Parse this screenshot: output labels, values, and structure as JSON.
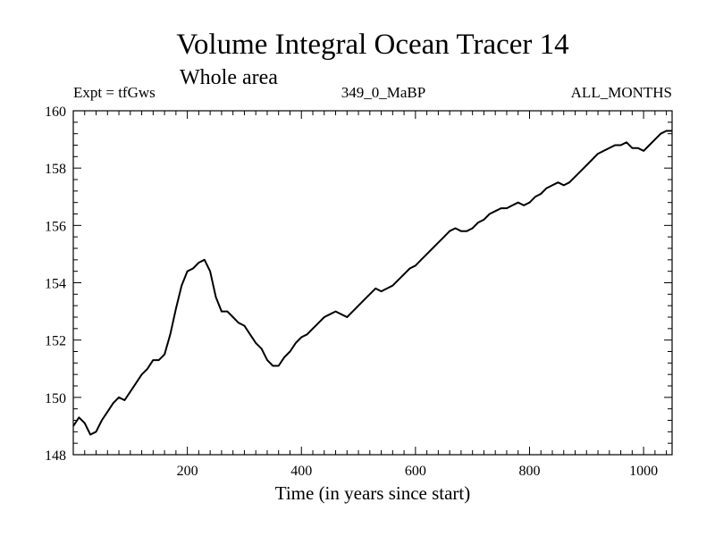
{
  "chart_data": {
    "type": "line",
    "title": "Volume Integral Ocean Tracer 14",
    "subtitle": "Whole area",
    "left_label": "Expt = tfGws",
    "center_label": "349_0_MaBP",
    "right_label": "ALL_MONTHS",
    "xlabel": "Time (in years since start)",
    "ylabel": "",
    "xlim": [
      0,
      1050
    ],
    "ylim": [
      148,
      160
    ],
    "x_ticks": [
      200,
      400,
      600,
      800,
      1000
    ],
    "y_ticks": [
      148,
      150,
      152,
      154,
      156,
      158,
      160
    ],
    "grid": false,
    "line_color": "#000000",
    "series": [
      {
        "x": [
          0,
          10,
          20,
          30,
          40,
          50,
          60,
          70,
          80,
          90,
          100,
          110,
          120,
          130,
          140,
          150,
          160,
          170,
          180,
          190,
          200,
          210,
          220,
          230,
          240,
          250,
          260,
          270,
          280,
          290,
          300,
          310,
          320,
          330,
          340,
          350,
          360,
          370,
          380,
          390,
          400,
          410,
          420,
          430,
          440,
          450,
          460,
          470,
          480,
          490,
          500,
          510,
          520,
          530,
          540,
          550,
          560,
          570,
          580,
          590,
          600,
          610,
          620,
          630,
          640,
          650,
          660,
          670,
          680,
          690,
          700,
          710,
          720,
          730,
          740,
          750,
          760,
          770,
          780,
          790,
          800,
          810,
          820,
          830,
          840,
          850,
          860,
          870,
          880,
          890,
          900,
          910,
          920,
          930,
          940,
          950,
          960,
          970,
          980,
          990,
          1000,
          1010,
          1020,
          1030,
          1040,
          1050
        ],
        "values": [
          149.0,
          149.3,
          149.1,
          148.7,
          148.8,
          149.2,
          149.5,
          149.8,
          150.0,
          149.9,
          150.2,
          150.5,
          150.8,
          151.0,
          151.3,
          151.3,
          151.5,
          152.2,
          153.1,
          153.9,
          154.4,
          154.5,
          154.7,
          154.8,
          154.4,
          153.5,
          153.0,
          153.0,
          152.8,
          152.6,
          152.5,
          152.2,
          151.9,
          151.7,
          151.3,
          151.1,
          151.1,
          151.4,
          151.6,
          151.9,
          152.1,
          152.2,
          152.4,
          152.6,
          152.8,
          152.9,
          153.0,
          152.9,
          152.8,
          153.0,
          153.2,
          153.4,
          153.6,
          153.8,
          153.7,
          153.8,
          153.9,
          154.1,
          154.3,
          154.5,
          154.6,
          154.8,
          155.0,
          155.2,
          155.4,
          155.6,
          155.8,
          155.9,
          155.8,
          155.8,
          155.9,
          156.1,
          156.2,
          156.4,
          156.5,
          156.6,
          156.6,
          156.7,
          156.8,
          156.7,
          156.8,
          157.0,
          157.1,
          157.3,
          157.4,
          157.5,
          157.4,
          157.5,
          157.7,
          157.9,
          158.1,
          158.3,
          158.5,
          158.6,
          158.7,
          158.8,
          158.8,
          158.9,
          158.7,
          158.7,
          158.6,
          158.8,
          159.0,
          159.2,
          159.3,
          159.3
        ]
      }
    ]
  }
}
